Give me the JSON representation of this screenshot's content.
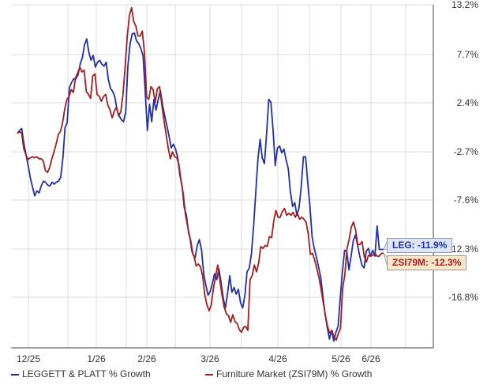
{
  "chart_data": {
    "type": "line",
    "x_ticks": [
      "12/25",
      "1/26",
      "2/26",
      "3/26",
      "4/26",
      "5/26",
      "6/26"
    ],
    "y_ticks": [
      "13.2%",
      "7.7%",
      "2.4%",
      "-2.7%",
      "-7.6%",
      "-12.3%",
      "-16.8%"
    ],
    "ylim": [
      -22.0,
      13.2
    ],
    "grid": true,
    "legend_position": "bottom",
    "series": [
      {
        "name": "LEGGETT & PLATT % Growth",
        "color": "#1f2fb0",
        "last_label": "LEG: -11.9%",
        "values": [
          0,
          0.3,
          0.5,
          -1.0,
          -2.2,
          -3.3,
          -4.6,
          -5.5,
          -6.4,
          -5.9,
          -6.1,
          -5.4,
          -4.9,
          -5.0,
          -5.3,
          -5.4,
          -5.0,
          -5.2,
          -5.0,
          -4.9,
          -4.5,
          -2.5,
          0.6,
          1.1,
          4.7,
          5.2,
          5.6,
          5.6,
          6.0,
          7.1,
          7.8,
          9.1,
          9.7,
          8.3,
          7.5,
          8.0,
          6.8,
          7.3,
          7.5,
          7.1,
          6.9,
          7.3,
          5.5,
          4.6,
          4.3,
          3.7,
          2.4,
          1.8,
          1.4,
          1.2,
          2.2,
          6.9,
          9.2,
          10.2,
          10.3,
          9.5,
          9.2,
          8.7,
          8.0,
          4.3,
          0.3,
          3.0,
          1.2,
          3.5,
          2.4,
          3.5,
          4.4,
          2.9,
          1.8,
          0.8,
          -0.3,
          -1.5,
          -1.1,
          -1.6,
          -2.5,
          -4.3,
          -5.4,
          -7.6,
          -8.4,
          -10.2,
          -11.0,
          -12.4,
          -12.8,
          -11.5,
          -10.9,
          -12.0,
          -14.4,
          -15.6,
          -16.6,
          -16.2,
          -15.4,
          -14.4,
          -15.0,
          -13.9,
          -15.3,
          -16.9,
          -17.9,
          -16.4,
          -14.6,
          -16.3,
          -15.8,
          -16.5,
          -16.0,
          -17.4,
          -17.9,
          -16.6,
          -14.2,
          -13.8,
          -12.4,
          -9.5,
          -6.1,
          -2.6,
          -0.6,
          -2.5,
          -3.1,
          -0.1,
          3.5,
          3.2,
          0.3,
          -3.3,
          -1.5,
          -1.3,
          -2.0,
          -1.6,
          -2.7,
          -3.6,
          -6.0,
          -7.5,
          -7.1,
          -8.4,
          -7.6,
          -5.4,
          -2.4,
          -2.4,
          -5.1,
          -7.5,
          -10.6,
          -11.8,
          -12.7,
          -13.7,
          -14.8,
          -16.7,
          -18.6,
          -19.9,
          -21.1,
          -20.2,
          -21.3,
          -20.4,
          -19.8,
          -16.9,
          -14.2,
          -12.0,
          -12.1,
          -14.0,
          -12.6,
          -11.0,
          -10.4,
          -11.5,
          -12.6,
          -13.5,
          -13.8,
          -12.1,
          -11.8,
          -12.6,
          -12.0,
          -12.6,
          -9.5,
          -11.9,
          -11.9,
          -11.9
        ]
      },
      {
        "name": "Furniture Market (ZSI79M) % Growth",
        "color": "#a41e1e",
        "last_label": "ZSI79M: -12.3%",
        "values": [
          0,
          0.2,
          0,
          -1.6,
          -2.2,
          -2.7,
          -2.5,
          -2.4,
          -2.5,
          -2.4,
          -2.6,
          -2.6,
          -2.8,
          -3.8,
          -4.0,
          -3.5,
          -2.6,
          -1.9,
          -1.1,
          -0.1,
          0.2,
          1.1,
          2.5,
          3.5,
          3.8,
          4.5,
          4.2,
          5.7,
          6.2,
          6.8,
          6.3,
          6.5,
          4.3,
          4.0,
          3.6,
          5.9,
          6.1,
          4.0,
          3.8,
          3.3,
          3.8,
          4.0,
          2.9,
          2.4,
          1.6,
          2.3,
          2.7,
          1.8,
          2.2,
          3.9,
          6.8,
          9.9,
          12.1,
          12.9,
          11.5,
          11.0,
          10.0,
          10.0,
          10.5,
          8.3,
          3.7,
          3.5,
          4.8,
          4.5,
          3.2,
          4.6,
          4.8,
          3.0,
          1.4,
          0,
          -1.5,
          -2.6,
          -1.9,
          -2.4,
          -2.5,
          -3.2,
          -4.9,
          -6.2,
          -8.3,
          -9.5,
          -10.6,
          -12.1,
          -12.6,
          -13.6,
          -13.4,
          -13.7,
          -14.6,
          -16.6,
          -17.6,
          -18.2,
          -17.6,
          -15.9,
          -14.7,
          -13.5,
          -15.1,
          -16.6,
          -17.8,
          -18.5,
          -18.7,
          -19.4,
          -18.6,
          -19.3,
          -19.5,
          -20.1,
          -20.4,
          -19.9,
          -19.8,
          -20.2,
          -15.0,
          -14.6,
          -13.5,
          -14.2,
          -13.3,
          -11.6,
          -11.8,
          -11.5,
          -11.6,
          -10.6,
          -10.7,
          -9.0,
          -7.9,
          -8.6,
          -8.6,
          -8.0,
          -7.7,
          -8.4,
          -8.2,
          -8.4,
          -8.1,
          -8.6,
          -8.2,
          -8.8,
          -8.6,
          -8.8,
          -9.1,
          -10.3,
          -12.4,
          -12.3,
          -13.0,
          -13.9,
          -14.8,
          -16.0,
          -17.4,
          -18.7,
          -19.8,
          -20.5,
          -20.2,
          -20.9,
          -21.2,
          -20.5,
          -20.0,
          -15.9,
          -14.5,
          -11.8,
          -10.9,
          -9.6,
          -9.1,
          -9.9,
          -11.4,
          -11.4,
          -11.1,
          -12.6,
          -13.2,
          -12.5,
          -12.6,
          -12.5,
          -12.3,
          -12.6,
          -12.6,
          -12.3,
          -12.3
        ]
      }
    ]
  }
}
